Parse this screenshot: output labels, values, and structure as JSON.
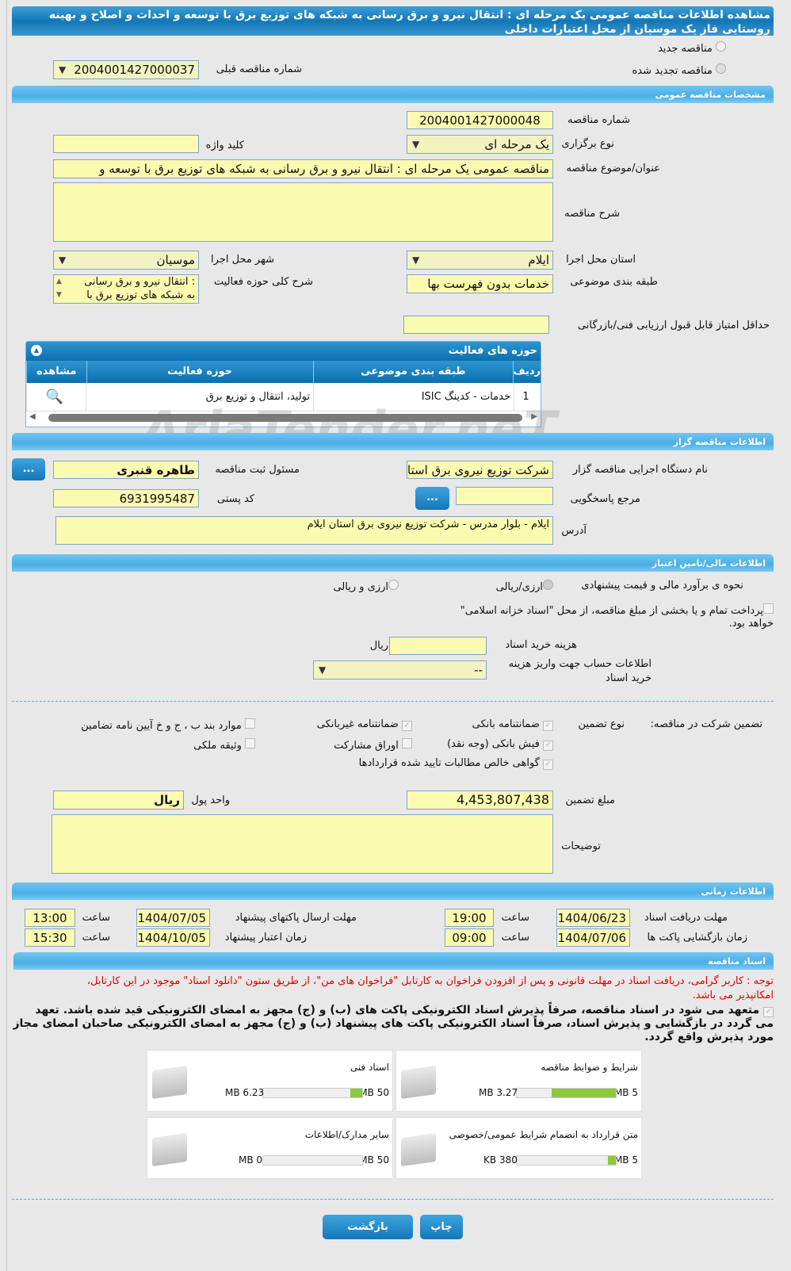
{
  "header": {
    "title_line1": "مشاهده اطلاعات مناقصه عمومی یک مرحله ای : انتقال نیرو و برق رسانی به شبکه های توزیع برق با توسعه و احداث و اصلاح و بهینه",
    "title_line2": "روستایی فاز یک موسیان از محل اعتبارات داخلی"
  },
  "tender_kind": {
    "new_label": "مناقصه جدید",
    "renewed_label": "مناقصه تجدید شده",
    "prev_number_label": "شماره مناقصه قبلی",
    "prev_number_value": "2004001427000037"
  },
  "general": {
    "section_title": "مشخصات مناقصه عمومی",
    "number_label": "شماره مناقصه",
    "number_value": "2004001427000048",
    "type_label": "نوع برگزاری",
    "type_value": "یک مرحله ای",
    "keyword_label": "کلید واژه",
    "keyword_value": "",
    "subject_label": "عنوان/موضوع مناقصه",
    "subject_value": "مناقصه عمومی یک مرحله ای : انتقال نیرو و برق رسانی به شبکه های توزیع برق با توسعه و",
    "description_label": "شرح مناقصه",
    "description_value": "",
    "province_label": "استان محل اجرا",
    "province_value": "ایلام",
    "city_label": "شهر محل اجرا",
    "city_value": "موسیان",
    "category_label": "طبقه بندی موضوعی",
    "category_value": "خدمات بدون فهرست بها",
    "activity_desc_label": "شرح کلی حوزه فعالیت",
    "activity_desc_value_line1": ": انتقال نیرو و برق رسانی",
    "activity_desc_value_line2": "به شبکه های توزیع برق با",
    "min_score_label": "حداقل امتیاز قابل قبول ارزیابی فنی/بازرگانی",
    "min_score_value": ""
  },
  "activities": {
    "title": "حوزه های فعالیت",
    "columns": [
      "ردیف",
      "طبقه بندی موضوعی",
      "حوزه فعالیت",
      "مشاهده"
    ],
    "rows": [
      {
        "index": "1",
        "category": "خدمات - کدینگ ISIC",
        "field": "تولید، انتقال و توزیع برق"
      }
    ]
  },
  "organizer": {
    "section_title": "اطلاعات مناقصه گزار",
    "org_label": "نام دستگاه اجرایی مناقصه گزار",
    "org_value": "شرکت توزیع نیروی برق استان",
    "responsible_label": "مسئول ثبت مناقصه",
    "responsible_value": "طاهره قنبری",
    "more_button": "...",
    "reference_label": "مرجع پاسخگویی",
    "reference_value": "",
    "postal_label": "کد پستی",
    "postal_value": "6931995487",
    "address_label": "آدرس",
    "address_value": "ایلام - بلوار مدرس - شرکت توزیع نیروی برق استان ایلام"
  },
  "financial": {
    "section_title": "اطلاعات مالی/تامین اعتبار",
    "estimate_label": "نحوه ی برآورد مالی و قیمت پیشنهادی",
    "opt_rial": "ارزی/ریالی",
    "opt_both": "ارزی و ریالی",
    "treasury_line1": "پرداخت تمام و یا بخشی از مبلغ مناقصه، از محل \"اسناد خزانه اسلامی\"",
    "treasury_line2": "خواهد بود.",
    "doc_cost_label": "هزینه خرید اسناد",
    "doc_cost_value": "",
    "doc_cost_unit": "ریال",
    "account_label_line1": "اطلاعات حساب جهت واریز هزینه",
    "account_label_line2": "خرید اسناد",
    "account_value": "--"
  },
  "guarantee": {
    "label": "تضمین شرکت در مناقصه:",
    "type_label": "نوع تضمین",
    "options": [
      {
        "label": "ضمانتنامه بانکی",
        "checked": true
      },
      {
        "label": "ضمانتنامه غیربانکی",
        "checked": true
      },
      {
        "label": "موارد بند ب ، ج و خ آیین نامه تضامین",
        "checked": false
      },
      {
        "label": "فیش بانکی (وجه نقد)",
        "checked": true
      },
      {
        "label": "اوراق مشارکت",
        "checked": false
      },
      {
        "label": "وثیقه ملکی",
        "checked": false
      },
      {
        "label": "گواهی خالص مطالبات تایید شده قراردادها",
        "checked": true
      }
    ],
    "amount_label": "مبلغ تضمین",
    "amount_value": "4,453,807,438",
    "currency_label": "واحد پول",
    "currency_value": "ریال",
    "notes_label": "توضیحات",
    "notes_value": ""
  },
  "timing": {
    "section_title": "اطلاعات زمانی",
    "hour_label": "ساعت",
    "doc_receive_label": "مهلت دریافت اسناد",
    "doc_receive_date": "1404/06/23",
    "doc_receive_time": "19:00",
    "send_label": "مهلت ارسال پاکتهای پیشنهاد",
    "send_date": "1404/07/05",
    "send_time": "13:00",
    "open_label": "زمان بازگشایی پاکت ها",
    "open_date": "1404/07/06",
    "open_time": "09:00",
    "validity_label": "زمان اعتبار پیشنهاد",
    "validity_date": "1404/10/05",
    "validity_time": "15:30"
  },
  "documents": {
    "section_title": "اسناد مناقصه",
    "notice_line1": "توجه : کاربر گرامی، دریافت اسناد در مهلت قانونی و پس از افزودن فراخوان به کارتابل \"فراخوان های من\"، از طریق ستون \"دانلود اسناد\" موجود در این کارتابل،",
    "notice_line2": "امکانپذیر می باشد.",
    "commit_line1": "متعهد می شود در اسناد مناقصه، صرفاً پذیرش اسناد الکترونیکی پاکت های (ب) و (ج) مجهز به امضای الکترونیکی قید شده باشد. تعهد",
    "commit_line2": "می گردد در بازگشایی و پذیرش اسناد، صرفاً اسناد الکترونیکی پاکت های پیشنهاد (ب) و (ج) مجهز به امضای الکترونیکی صاحبان امضای مجاز",
    "commit_line3": "مورد پذیرش واقع گردد.",
    "files": [
      {
        "title": "شرایط و ضوابط مناقصه",
        "size": "3.27 MB",
        "max": "5 MB",
        "fill_percent": 65
      },
      {
        "title": "اسناد فنی",
        "size": "6.23 MB",
        "max": "50 MB",
        "fill_percent": 12
      },
      {
        "title": "متن قرارداد به انضمام شرایط عمومی/خصوصی",
        "size": "380 KB",
        "max": "5 MB",
        "fill_percent": 8
      },
      {
        "title": "سایر مدارک/اطلاعات",
        "size": "0 MB",
        "max": "50 MB",
        "fill_percent": 0
      }
    ]
  },
  "actions": {
    "back": "بازگشت",
    "print": "چاپ"
  },
  "watermark": "AriaTender.neT"
}
